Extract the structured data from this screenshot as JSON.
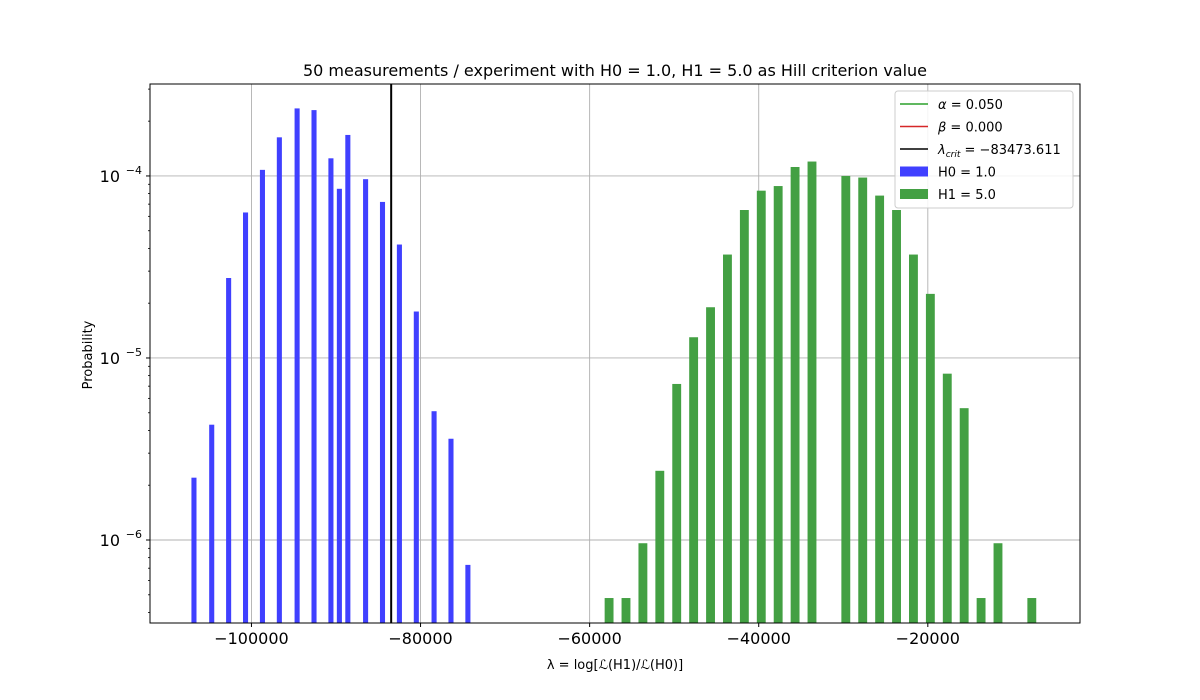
{
  "chart_data": {
    "type": "bar",
    "title": "50 measurements / experiment with H0 = 1.0, H1 = 5.0 as Hill criterion value",
    "xlabel": "λ = log[ℒ(H1)/ℒ(H0)]",
    "ylabel": "Probability",
    "xlim": [
      -112000,
      -2000
    ],
    "ylim": [
      3.5e-07,
      0.00032
    ],
    "yscale": "log",
    "grid": true,
    "legend_position": "top-right",
    "x_ticks": [
      {
        "value": -100000,
        "label": "−100000"
      },
      {
        "value": -80000,
        "label": "−80000"
      },
      {
        "value": -60000,
        "label": "−60000"
      },
      {
        "value": -40000,
        "label": "−40000"
      },
      {
        "value": -20000,
        "label": "−20000"
      }
    ],
    "y_ticks": [
      {
        "value": 1e-06,
        "base": "10",
        "exp": "−6"
      },
      {
        "value": 1e-05,
        "base": "10",
        "exp": "−5"
      },
      {
        "value": 0.0001,
        "base": "10",
        "exp": "−4"
      }
    ],
    "vline": {
      "x": -83473.611,
      "color": "#000000"
    },
    "legend": [
      {
        "type": "line",
        "color": "#2ca02c",
        "sym": "α",
        "sub": "",
        "rest": " = 0.050"
      },
      {
        "type": "line",
        "color": "#d62728",
        "sym": "β",
        "sub": "",
        "rest": " = 0.000"
      },
      {
        "type": "line",
        "color": "#000000",
        "sym": "λ",
        "sub": "crit",
        "rest": " = −83473.611"
      },
      {
        "type": "patch",
        "color": "#4040ff",
        "sym": "",
        "sub": "",
        "rest": "H0 = 1.0"
      },
      {
        "type": "patch",
        "color": "#43a043",
        "sym": "",
        "sub": "",
        "rest": "H1 = 5.0"
      }
    ],
    "series": [
      {
        "name": "H0 = 1.0",
        "color": "#4040ff",
        "bar_width": 600,
        "x": [
          -106800,
          -104700,
          -102700,
          -100700,
          -98700,
          -96700,
          -94600,
          -92600,
          -90600,
          -89600,
          -88600,
          -86500,
          -84500,
          -82500,
          -80500,
          -78400,
          -76400,
          -74400
        ],
        "values": [
          2.2e-06,
          4.3e-06,
          2.75e-05,
          6.3e-05,
          0.000108,
          0.000163,
          0.000235,
          0.00023,
          0.000125,
          8.5e-05,
          0.000168,
          9.6e-05,
          7.2e-05,
          4.2e-05,
          1.8e-05,
          5.1e-06,
          3.6e-06,
          7.3e-07
        ]
      },
      {
        "name": "H1 = 5.0",
        "color": "#43a043",
        "bar_width": 1050,
        "x": [
          -57700,
          -55700,
          -53700,
          -51700,
          -49700,
          -47700,
          -45700,
          -43700,
          -41700,
          -39700,
          -37700,
          -35700,
          -33700,
          -31700,
          -29700,
          -27700,
          -25700,
          -23700,
          -21700,
          -19700,
          -17700,
          -15700,
          -13700,
          -11700,
          -9700,
          -7700,
          -5700
        ],
        "values": [
          4.8e-07,
          4.8e-07,
          9.6e-07,
          2.4e-06,
          7.2e-06,
          1.3e-05,
          1.9e-05,
          3.7e-05,
          6.5e-05,
          8.3e-05,
          8.8e-05,
          0.000112,
          0.00012,
          0,
          0.0001,
          9.8e-05,
          7.8e-05,
          6.5e-05,
          3.7e-05,
          2.25e-05,
          8.2e-06,
          5.3e-06,
          4.8e-07,
          9.6e-07,
          0,
          4.8e-07,
          0
        ]
      }
    ]
  }
}
